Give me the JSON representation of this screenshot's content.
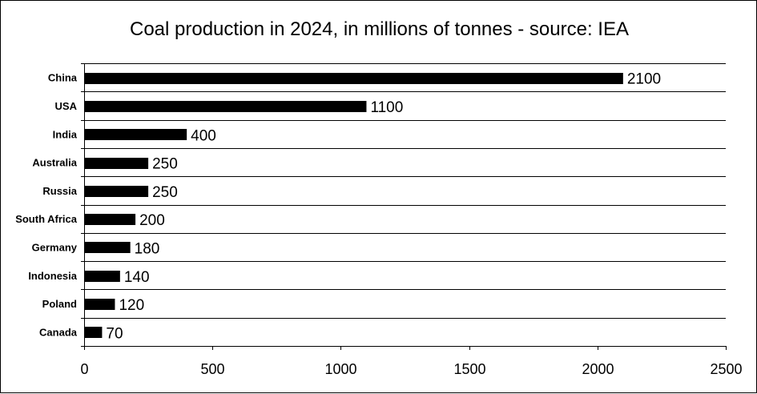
{
  "chart_data": {
    "type": "bar",
    "orientation": "horizontal",
    "title": "Coal production in 2024, in millions of tonnes - source: IEA",
    "categories": [
      "China",
      "USA",
      "India",
      "Australia",
      "Russia",
      "South Africa",
      "Germany",
      "Indonesia",
      "Poland",
      "Canada"
    ],
    "values": [
      2100,
      1100,
      400,
      250,
      250,
      200,
      180,
      140,
      120,
      70
    ],
    "xlim": [
      0,
      2500
    ],
    "xticks": [
      0,
      500,
      1000,
      1500,
      2000,
      2500
    ],
    "xlabel": "",
    "ylabel": "",
    "grid": true,
    "bar_color": "#000000"
  }
}
